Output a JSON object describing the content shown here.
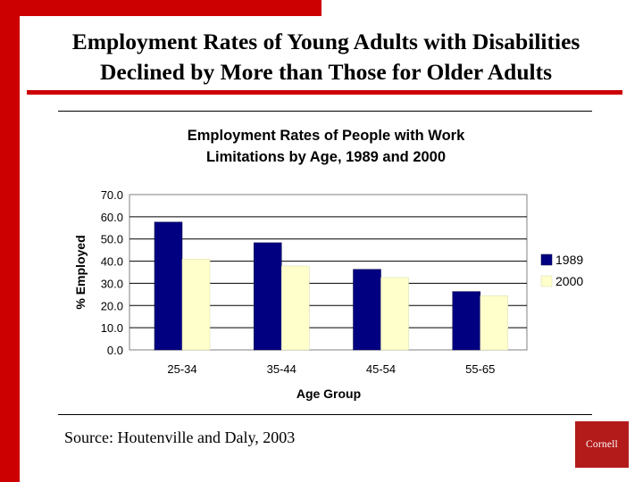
{
  "slide": {
    "title_line1": "Employment Rates of Young Adults with Disabilities",
    "title_line2": "Declined by More than Those for Older Adults",
    "source": "Source: Houtenville and Daly, 2003",
    "logo_text": "Cornell",
    "accent_color": "#cc0000"
  },
  "chart_data": {
    "type": "bar",
    "title_line1": "Employment Rates of People with Work",
    "title_line2": "Limitations by Age, 1989 and 2000",
    "xlabel": "Age Group",
    "ylabel": "% Employed",
    "categories": [
      "25-34",
      "35-44",
      "45-54",
      "55-65"
    ],
    "series": [
      {
        "name": "1989",
        "values": [
          57.6,
          48.3,
          36.3,
          26.3
        ],
        "color": "#000080"
      },
      {
        "name": "2000",
        "values": [
          40.9,
          37.8,
          32.6,
          24.4
        ],
        "color": "#ffffcc"
      }
    ],
    "ylim": [
      0,
      70
    ],
    "yticks": [
      "0.0",
      "10.0",
      "20.0",
      "30.0",
      "40.0",
      "50.0",
      "60.0",
      "70.0"
    ],
    "grid": true,
    "legend_position": "right"
  }
}
